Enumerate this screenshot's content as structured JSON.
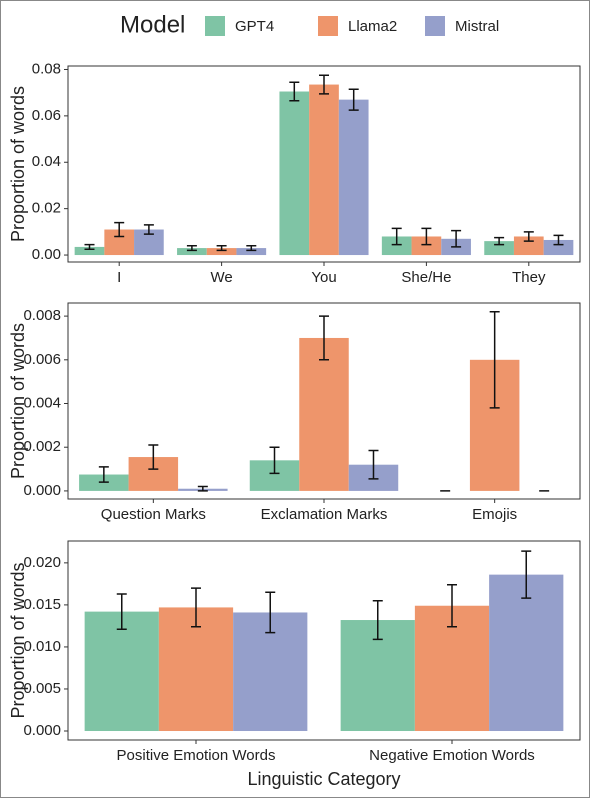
{
  "chart_data": [
    {
      "type": "bar",
      "legend_title": "Model",
      "ylabel": "Proportion of words",
      "categories": [
        "I",
        "We",
        "You",
        "She/He",
        "They"
      ],
      "series": [
        {
          "name": "GPT4",
          "color": "#7fc4a5",
          "values": [
            0.0035,
            0.003,
            0.0705,
            0.008,
            0.006
          ],
          "errors": [
            0.001,
            0.001,
            0.004,
            0.0035,
            0.0015
          ]
        },
        {
          "name": "Llama2",
          "color": "#ee956b",
          "values": [
            0.011,
            0.003,
            0.0735,
            0.008,
            0.008
          ],
          "errors": [
            0.003,
            0.001,
            0.004,
            0.0035,
            0.002
          ]
        },
        {
          "name": "Mistral",
          "color": "#959fcb",
          "values": [
            0.011,
            0.003,
            0.067,
            0.007,
            0.0065
          ],
          "errors": [
            0.002,
            0.001,
            0.0045,
            0.0035,
            0.002
          ]
        }
      ],
      "ylim": [
        -0.003,
        0.0815
      ],
      "yticks": [
        {
          "value": 0,
          "label": "0.00"
        },
        0.02,
        0.04,
        0.06,
        0.08
      ]
    },
    {
      "type": "bar",
      "ylabel": "Proportion of words",
      "categories": [
        "Question Marks",
        "Exclamation Marks",
        "Emojis"
      ],
      "series": [
        {
          "name": "GPT4",
          "color": "#7fc4a5",
          "values": [
            0.00075,
            0.0014,
            0
          ],
          "errors": [
            0.00035,
            0.0006,
            0
          ]
        },
        {
          "name": "Llama2",
          "color": "#ee956b",
          "values": [
            0.00155,
            0.007,
            0.006
          ],
          "errors": [
            0.00055,
            0.001,
            0.0022
          ]
        },
        {
          "name": "Mistral",
          "color": "#959fcb",
          "values": [
            0.0001,
            0.0012,
            0
          ],
          "errors": [
            0.0001,
            0.00065,
            0
          ]
        }
      ],
      "ylim": [
        -0.00037,
        0.0086
      ],
      "yticks": [
        {
          "value": 0,
          "label": "0.000"
        },
        0.002,
        0.004,
        0.006,
        0.008
      ]
    },
    {
      "type": "bar",
      "ylabel": "Proportion of words",
      "xlabel": "Linguistic Category",
      "categories": [
        "Positive Emotion Words",
        "Negative Emotion Words"
      ],
      "series": [
        {
          "name": "GPT4",
          "color": "#7fc4a5",
          "values": [
            0.0142,
            0.0132
          ],
          "errors": [
            0.0021,
            0.0023
          ]
        },
        {
          "name": "Llama2",
          "color": "#ee956b",
          "values": [
            0.0147,
            0.0149
          ],
          "errors": [
            0.0023,
            0.0025
          ]
        },
        {
          "name": "Mistral",
          "color": "#959fcb",
          "values": [
            0.0141,
            0.0186
          ],
          "errors": [
            0.0024,
            0.0028
          ]
        }
      ],
      "ylim": [
        -0.00107,
        0.0226
      ],
      "yticks": [
        {
          "value": 0,
          "label": "0.000"
        },
        0.005,
        {
          "value": 0.01,
          "label": "0.010"
        },
        0.015,
        {
          "value": 0.02,
          "label": "0.020"
        }
      ]
    }
  ]
}
